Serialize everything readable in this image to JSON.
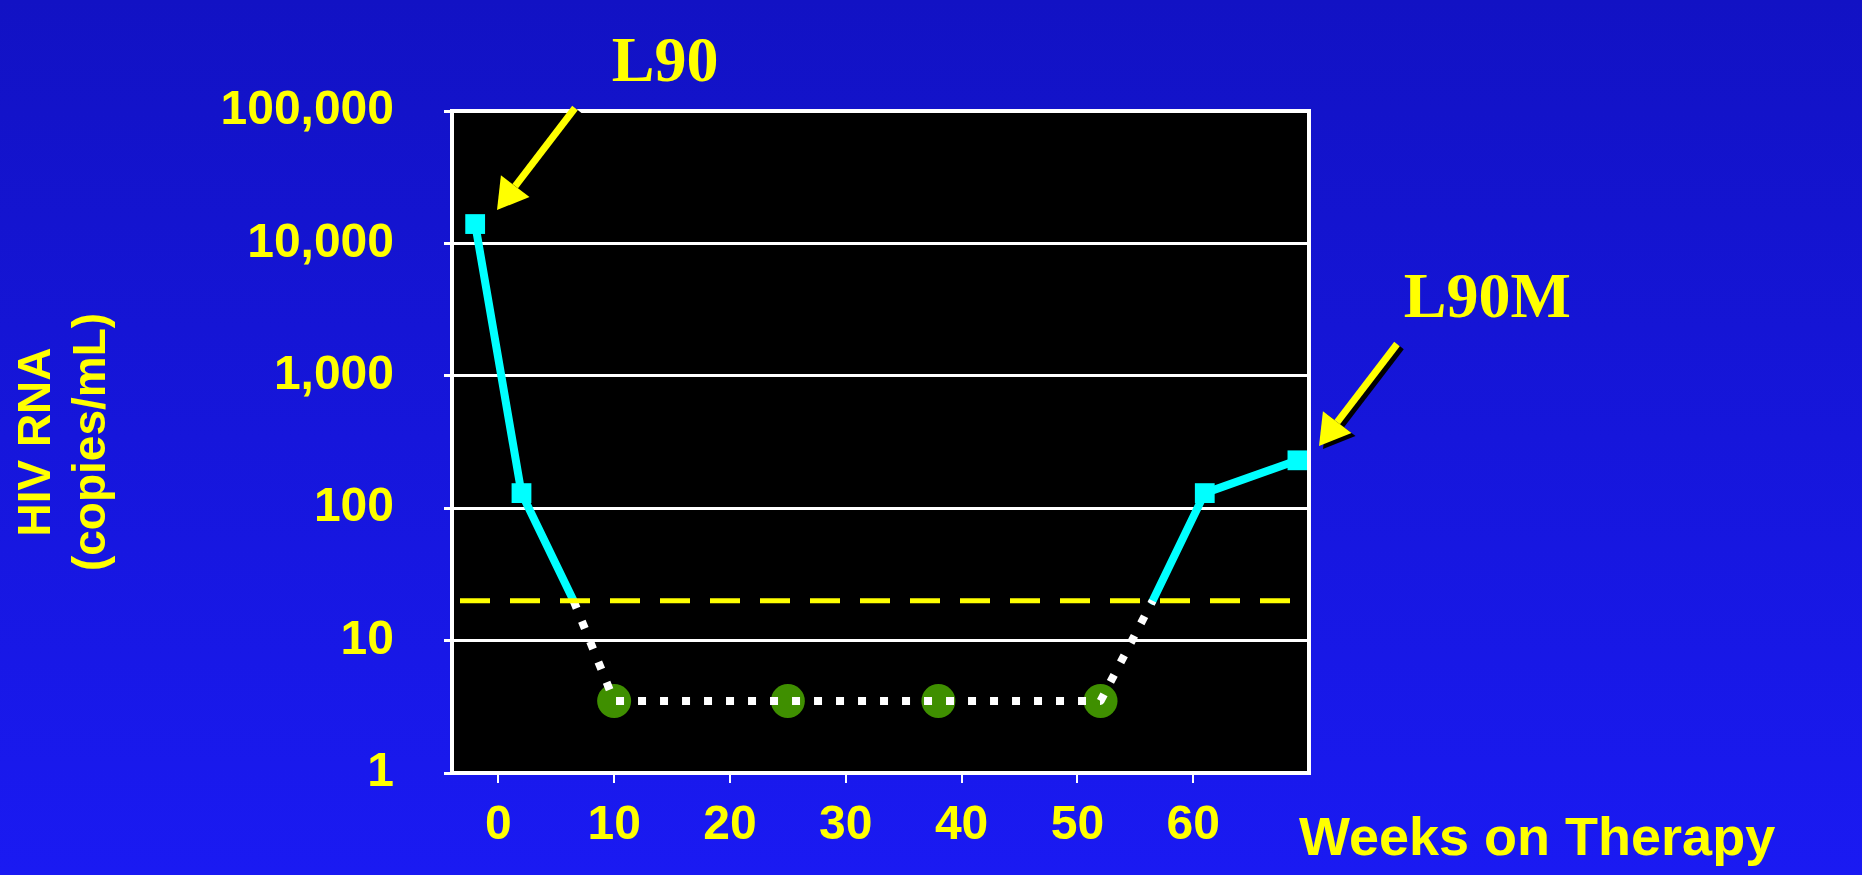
{
  "chart_data": {
    "type": "line",
    "xlabel": "Weeks on Therapy",
    "ylabel": "HIV RNA (copies/mL)",
    "xlim": [
      -4,
      70
    ],
    "xticks": [
      0,
      10,
      20,
      30,
      40,
      50,
      60
    ],
    "ylim": [
      1,
      100000
    ],
    "yticks": [
      {
        "value": 1,
        "label": "1"
      },
      {
        "value": 10,
        "label": "10"
      },
      {
        "value": 100,
        "label": "100"
      },
      {
        "value": 1000,
        "label": "1,000"
      },
      {
        "value": 10000,
        "label": "10,000"
      },
      {
        "value": 100000,
        "label": "100,000"
      }
    ],
    "log": true,
    "grid": "y",
    "legend": false,
    "series": [
      {
        "color": "#00ffff",
        "marker": "none",
        "line_style": "solid",
        "x": [
          -2,
          2,
          6.5
        ],
        "values": [
          14000,
          130,
          20
        ]
      },
      {
        "color": "#00ffff",
        "marker": "none",
        "line_style": "solid",
        "x": [
          56.5,
          61,
          69
        ],
        "values": [
          20,
          130,
          230
        ]
      },
      {
        "type": "scatter",
        "color": "#00ffff",
        "marker": "square",
        "x": [
          -2,
          2,
          61,
          69
        ],
        "values": [
          14000,
          130,
          130,
          230
        ]
      },
      {
        "color": "#ffffff",
        "marker": "none",
        "line_style": "dotted",
        "x": [
          6.5,
          10,
          25,
          38,
          52,
          56.5
        ],
        "values": [
          20,
          3.5,
          3.5,
          3.5,
          3.5,
          20
        ]
      },
      {
        "type": "scatter",
        "color": "#3f8f00",
        "marker": "circle",
        "x": [
          10,
          25,
          38,
          52
        ],
        "values": [
          3.5,
          3.5,
          3.5,
          3.5
        ]
      }
    ],
    "ref_lines": [
      {
        "axis": "y",
        "value": 20,
        "color": "#ffff00",
        "line_style": "dashed"
      }
    ],
    "annotations": [
      {
        "text": "L90",
        "x": -2,
        "y": 14000
      },
      {
        "text": "L90M",
        "x": 69,
        "y": 230
      }
    ]
  }
}
